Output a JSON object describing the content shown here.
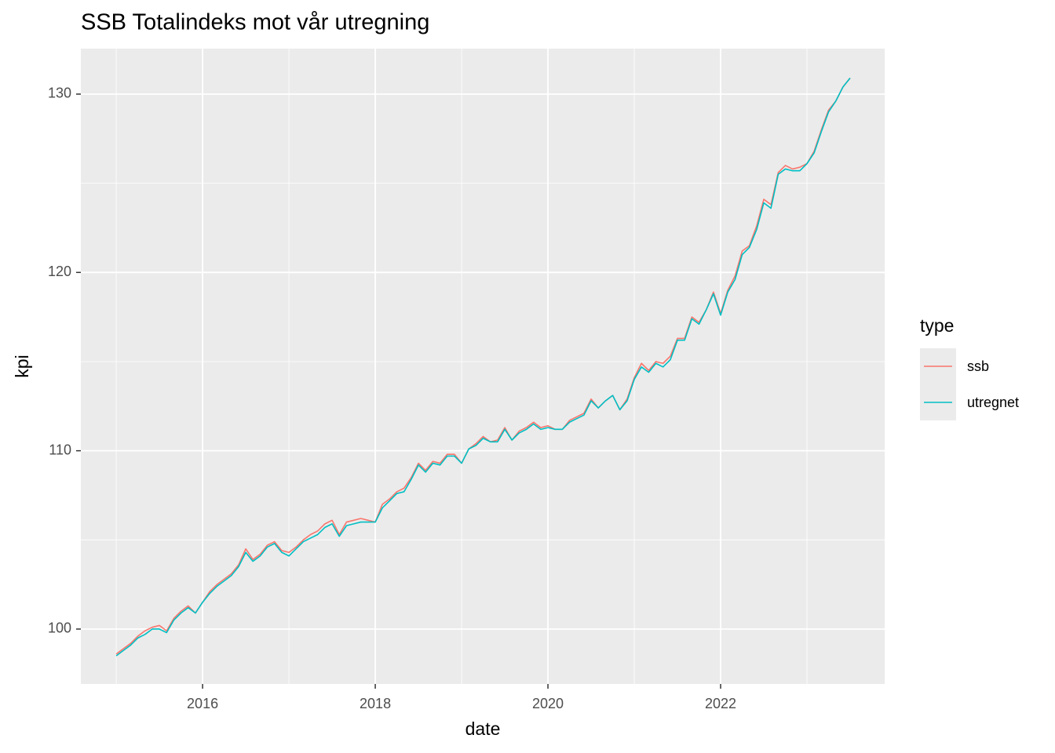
{
  "chart_data": {
    "type": "line",
    "title": "SSB Totalindeks mot vår utregning",
    "x_label": "date",
    "y_label": "kpi",
    "legend_title": "type",
    "legend_position": "right",
    "grid": true,
    "xlim": [
      2014.59,
      2023.9
    ],
    "xticks": [
      2016,
      2018,
      2020,
      2022
    ],
    "ylim": [
      96.92,
      132.55
    ],
    "yticks": [
      100,
      110,
      120,
      130
    ],
    "x": [
      2015,
      2015.083,
      2015.167,
      2015.25,
      2015.333,
      2015.417,
      2015.5,
      2015.583,
      2015.667,
      2015.75,
      2015.833,
      2015.917,
      2016,
      2016.083,
      2016.167,
      2016.25,
      2016.333,
      2016.417,
      2016.5,
      2016.583,
      2016.667,
      2016.75,
      2016.833,
      2016.917,
      2017,
      2017.083,
      2017.167,
      2017.25,
      2017.333,
      2017.417,
      2017.5,
      2017.583,
      2017.667,
      2017.75,
      2017.833,
      2017.917,
      2018,
      2018.083,
      2018.167,
      2018.25,
      2018.333,
      2018.417,
      2018.5,
      2018.583,
      2018.667,
      2018.75,
      2018.833,
      2018.917,
      2019,
      2019.083,
      2019.167,
      2019.25,
      2019.333,
      2019.417,
      2019.5,
      2019.583,
      2019.667,
      2019.75,
      2019.833,
      2019.917,
      2020,
      2020.083,
      2020.167,
      2020.25,
      2020.333,
      2020.417,
      2020.5,
      2020.583,
      2020.667,
      2020.75,
      2020.833,
      2020.917,
      2021,
      2021.083,
      2021.167,
      2021.25,
      2021.333,
      2021.417,
      2021.5,
      2021.583,
      2021.667,
      2021.75,
      2021.833,
      2021.917,
      2022,
      2022.083,
      2022.167,
      2022.25,
      2022.333,
      2022.417,
      2022.5,
      2022.583,
      2022.667,
      2022.75,
      2022.833,
      2022.917,
      2023,
      2023.083,
      2023.167,
      2023.25,
      2023.333,
      2023.417,
      2023.5
    ],
    "series": [
      {
        "name": "ssb",
        "color": "#F8766D",
        "values": [
          98.6,
          98.9,
          99.2,
          99.6,
          99.9,
          100.1,
          100.2,
          99.9,
          100.6,
          101.0,
          101.3,
          100.9,
          101.5,
          102.1,
          102.5,
          102.8,
          103.1,
          103.6,
          104.5,
          103.9,
          104.2,
          104.7,
          104.9,
          104.4,
          104.3,
          104.6,
          105.0,
          105.3,
          105.5,
          105.9,
          106.1,
          105.3,
          106.0,
          106.1,
          106.2,
          106.1,
          106.0,
          107.0,
          107.3,
          107.7,
          107.9,
          108.5,
          109.3,
          108.9,
          109.4,
          109.3,
          109.8,
          109.8,
          109.3,
          110.1,
          110.4,
          110.8,
          110.5,
          110.6,
          111.3,
          110.6,
          111.1,
          111.3,
          111.6,
          111.3,
          111.4,
          111.2,
          111.2,
          111.7,
          111.9,
          112.1,
          112.9,
          112.4,
          112.8,
          113.1,
          112.3,
          112.9,
          114.1,
          114.9,
          114.5,
          115.0,
          114.9,
          115.3,
          116.3,
          116.3,
          117.5,
          117.2,
          117.9,
          118.9,
          117.7,
          119.0,
          119.8,
          121.2,
          121.5,
          122.6,
          124.1,
          123.8,
          125.6,
          126.0,
          125.8,
          125.9,
          126.1,
          126.8,
          128.0,
          129.1,
          129.6,
          130.4,
          130.9
        ]
      },
      {
        "name": "utregnet",
        "color": "#00BFC4",
        "values": [
          98.5,
          98.8,
          99.1,
          99.5,
          99.7,
          100.0,
          100.0,
          99.8,
          100.5,
          100.9,
          101.2,
          100.9,
          101.5,
          102.0,
          102.4,
          102.7,
          103.0,
          103.5,
          104.3,
          103.8,
          104.1,
          104.6,
          104.8,
          104.3,
          104.1,
          104.5,
          104.9,
          105.1,
          105.3,
          105.7,
          105.9,
          105.2,
          105.8,
          105.9,
          106.0,
          106.0,
          106.0,
          106.8,
          107.2,
          107.6,
          107.7,
          108.4,
          109.2,
          108.8,
          109.3,
          109.2,
          109.7,
          109.7,
          109.3,
          110.1,
          110.3,
          110.7,
          110.5,
          110.5,
          111.2,
          110.6,
          111.0,
          111.2,
          111.5,
          111.2,
          111.3,
          111.2,
          111.2,
          111.6,
          111.8,
          112.0,
          112.8,
          112.4,
          112.8,
          113.1,
          112.3,
          112.8,
          114.0,
          114.7,
          114.4,
          114.9,
          114.7,
          115.1,
          116.2,
          116.2,
          117.4,
          117.1,
          117.9,
          118.8,
          117.6,
          118.9,
          119.6,
          121.0,
          121.4,
          122.4,
          123.9,
          123.6,
          125.5,
          125.8,
          125.7,
          125.7,
          126.1,
          126.7,
          127.9,
          129.0,
          129.6,
          130.4,
          130.9
        ]
      }
    ]
  }
}
